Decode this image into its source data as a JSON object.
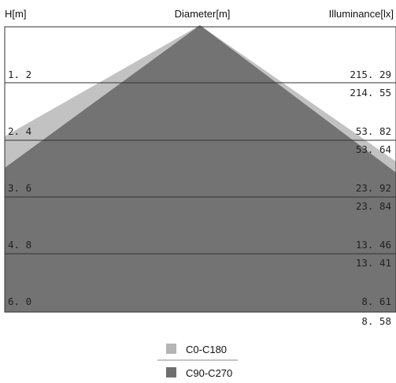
{
  "headers": {
    "left": "H[m]",
    "center": "Diameter[m]",
    "right": "Illuminance[lx]"
  },
  "rows": [
    {
      "height": "1. 2",
      "lux_c0": "215. 29",
      "lux_c90": "214. 55"
    },
    {
      "height": "2. 4",
      "lux_c0": "53. 82",
      "lux_c90": "53. 64"
    },
    {
      "height": "3. 6",
      "lux_c0": "23. 92",
      "lux_c90": "23. 84"
    },
    {
      "height": "4. 8",
      "lux_c0": "13. 46",
      "lux_c90": "13. 41"
    },
    {
      "height": "6. 0",
      "lux_c0": "8. 61",
      "lux_c90": "8. 58"
    }
  ],
  "legend": [
    {
      "label": "C0-C180",
      "color": "#b4b4b4"
    },
    {
      "label": "C90-C270",
      "color": "#6e6e6e"
    }
  ],
  "colors": {
    "c0_fill": "#c2c2c2",
    "c90_fill": "#737373",
    "grid": "#333333"
  }
}
